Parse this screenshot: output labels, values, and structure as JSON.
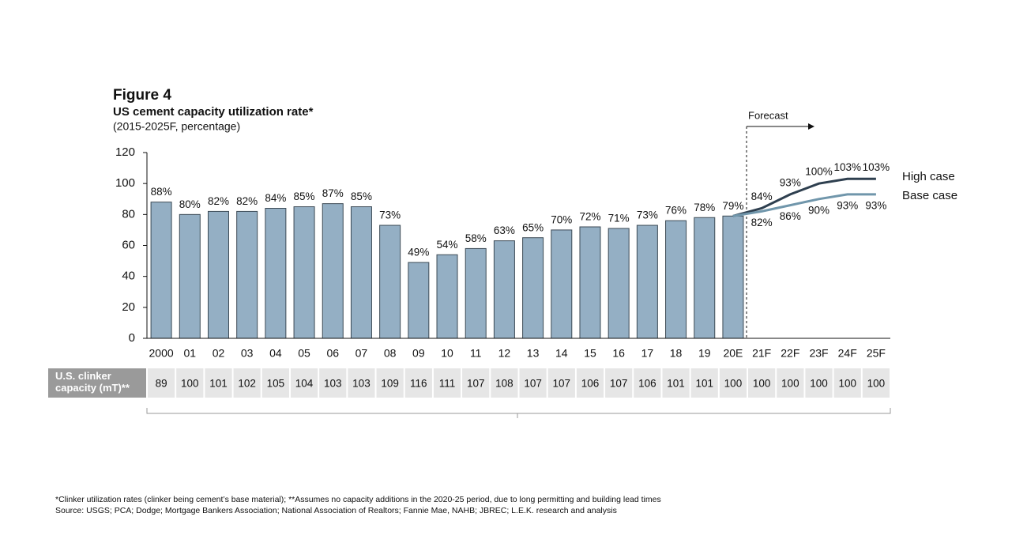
{
  "chart_data": {
    "type": "bar",
    "title": "Figure 4",
    "subtitle": "US cement capacity utilization rate*",
    "note": "(2015-2025F, percentage)",
    "forecast_label": "Forecast",
    "categories": [
      "2000",
      "01",
      "02",
      "03",
      "04",
      "05",
      "06",
      "07",
      "08",
      "09",
      "10",
      "11",
      "12",
      "13",
      "14",
      "15",
      "16",
      "17",
      "18",
      "19",
      "20E",
      "21F",
      "22F",
      "23F",
      "24F",
      "25F"
    ],
    "values": [
      88,
      80,
      82,
      82,
      84,
      85,
      87,
      85,
      73,
      49,
      54,
      58,
      63,
      65,
      70,
      72,
      71,
      73,
      76,
      78,
      79,
      null,
      null,
      null,
      null,
      null
    ],
    "value_labels": [
      "88%",
      "80%",
      "82%",
      "82%",
      "84%",
      "85%",
      "87%",
      "85%",
      "73%",
      "49%",
      "54%",
      "58%",
      "63%",
      "65%",
      "70%",
      "72%",
      "71%",
      "73%",
      "76%",
      "78%",
      "79%",
      null,
      null,
      null,
      null,
      null
    ],
    "color": "#94afc4",
    "series": [
      {
        "name": "High case",
        "type": "line",
        "color": "#2e3f4f",
        "values": [
          null,
          null,
          null,
          null,
          null,
          null,
          null,
          null,
          null,
          null,
          null,
          null,
          null,
          null,
          null,
          null,
          null,
          null,
          null,
          null,
          79,
          84,
          93,
          100,
          103,
          103
        ],
        "value_labels": [
          null,
          null,
          null,
          null,
          null,
          null,
          null,
          null,
          null,
          null,
          null,
          null,
          null,
          null,
          null,
          null,
          null,
          null,
          null,
          null,
          null,
          "84%",
          "93%",
          "100%",
          "103%",
          "103%"
        ]
      },
      {
        "name": "Base case",
        "type": "line",
        "color": "#7096ab",
        "values": [
          null,
          null,
          null,
          null,
          null,
          null,
          null,
          null,
          null,
          null,
          null,
          null,
          null,
          null,
          null,
          null,
          null,
          null,
          null,
          null,
          79,
          82,
          86,
          90,
          93,
          93
        ],
        "value_labels": [
          null,
          null,
          null,
          null,
          null,
          null,
          null,
          null,
          null,
          null,
          null,
          null,
          null,
          null,
          null,
          null,
          null,
          null,
          null,
          null,
          null,
          "82%",
          "86%",
          "90%",
          "93%",
          "93%"
        ]
      }
    ],
    "ylim": [
      0,
      120
    ],
    "yticks": [
      0,
      20,
      40,
      60,
      80,
      100,
      120
    ],
    "grid": false,
    "capacity": {
      "label": "U.S. clinker capacity (mT)**",
      "values": [
        89,
        100,
        101,
        102,
        105,
        104,
        103,
        103,
        109,
        116,
        111,
        107,
        108,
        107,
        107,
        106,
        107,
        106,
        101,
        101,
        100,
        100,
        100,
        100,
        100,
        100
      ]
    },
    "footnotes": [
      "*Clinker utilization rates (clinker being cement’s base material); **Assumes no capacity additions in the 2020-25 period, due to long permitting and building lead times",
      "Source: USGS; PCA; Dodge; Mortgage Bankers Association; National Association of Realtors; Fannie Mae, NAHB; JBREC; L.E.K. research and analysis"
    ]
  }
}
